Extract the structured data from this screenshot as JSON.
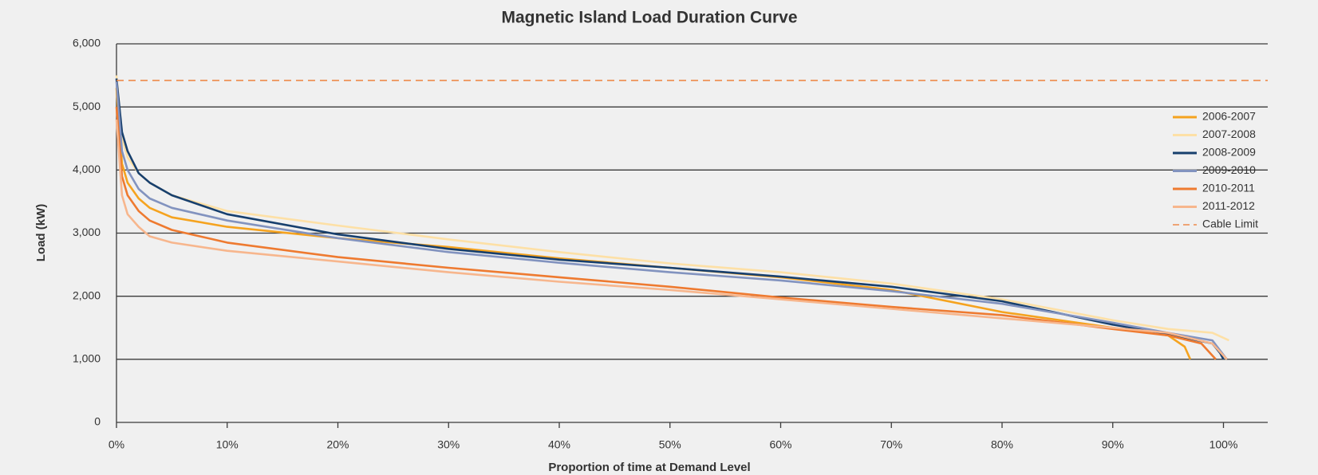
{
  "chart_data": {
    "type": "line",
    "title": "Magnetic Island Load Duration Curve",
    "xlabel": "Proportion of time at Demand Level",
    "ylabel": "Load (kW)",
    "xlim": [
      0,
      104
    ],
    "ylim": [
      0,
      6000
    ],
    "xticks": [
      {
        "value": 0,
        "label": "0%"
      },
      {
        "value": 10,
        "label": "10%"
      },
      {
        "value": 20,
        "label": "20%"
      },
      {
        "value": 30,
        "label": "30%"
      },
      {
        "value": 40,
        "label": "40%"
      },
      {
        "value": 50,
        "label": "50%"
      },
      {
        "value": 60,
        "label": "60%"
      },
      {
        "value": 70,
        "label": "70%"
      },
      {
        "value": 80,
        "label": "80%"
      },
      {
        "value": 90,
        "label": "90%"
      },
      {
        "value": 100,
        "label": "100%"
      }
    ],
    "yticks": [
      0,
      {
        "value": 1000,
        "label": "1,000"
      },
      {
        "value": 2000,
        "label": "2,000"
      },
      {
        "value": 3000,
        "label": "3,000"
      },
      {
        "value": 4000,
        "label": "4,000"
      },
      {
        "value": 5000,
        "label": "5,000"
      },
      {
        "value": 6000,
        "label": "6,000"
      }
    ],
    "grid": true,
    "legend": "right",
    "series": [
      {
        "name": "2006-2007",
        "color": "#f5a31f",
        "x": [
          0,
          0.5,
          1,
          2,
          3,
          5,
          10,
          20,
          30,
          40,
          50,
          60,
          70,
          80,
          90,
          95,
          96.5,
          97
        ],
        "values": [
          5300,
          4100,
          3800,
          3550,
          3400,
          3250,
          3100,
          2920,
          2780,
          2600,
          2450,
          2300,
          2100,
          1750,
          1500,
          1380,
          1200,
          1000
        ]
      },
      {
        "name": "2007-2008",
        "color": "#fde0a6",
        "x": [
          0,
          0.5,
          1,
          2,
          3,
          5,
          10,
          20,
          30,
          40,
          50,
          60,
          70,
          80,
          90,
          95,
          99,
          100.5
        ],
        "values": [
          5500,
          4500,
          4200,
          3950,
          3800,
          3600,
          3350,
          3120,
          2900,
          2700,
          2520,
          2380,
          2200,
          1950,
          1620,
          1480,
          1420,
          1300
        ]
      },
      {
        "name": "2008-2009",
        "color": "#173f6d",
        "x": [
          0,
          0.5,
          1,
          2,
          3,
          5,
          10,
          20,
          30,
          40,
          50,
          60,
          70,
          80,
          90,
          95,
          99,
          99.7,
          100
        ],
        "values": [
          5450,
          4600,
          4300,
          3950,
          3800,
          3600,
          3300,
          2980,
          2750,
          2580,
          2450,
          2310,
          2150,
          1920,
          1550,
          1400,
          1250,
          1100,
          1000
        ]
      },
      {
        "name": "2009-2010",
        "color": "#8293bf",
        "x": [
          0,
          0.5,
          1,
          2,
          3,
          5,
          10,
          20,
          30,
          40,
          50,
          60,
          70,
          80,
          90,
          95,
          99,
          100.3
        ],
        "values": [
          5400,
          4300,
          4000,
          3700,
          3550,
          3400,
          3200,
          2920,
          2700,
          2530,
          2380,
          2250,
          2080,
          1880,
          1580,
          1420,
          1300,
          1000
        ]
      },
      {
        "name": "2010-2011",
        "color": "#ee7a30",
        "x": [
          0,
          0.5,
          1,
          2,
          3,
          5,
          10,
          20,
          30,
          40,
          50,
          60,
          70,
          80,
          90,
          95,
          98,
          99.3
        ],
        "values": [
          5000,
          3900,
          3600,
          3350,
          3200,
          3050,
          2850,
          2620,
          2450,
          2300,
          2150,
          1980,
          1830,
          1700,
          1480,
          1380,
          1250,
          1000
        ]
      },
      {
        "name": "2011-2012",
        "color": "#f7b68d",
        "x": [
          0,
          0.5,
          1,
          2,
          3,
          5,
          10,
          20,
          30,
          40,
          50,
          60,
          70,
          80,
          90,
          95,
          99,
          100.3
        ],
        "values": [
          4800,
          3600,
          3300,
          3100,
          2950,
          2850,
          2720,
          2550,
          2380,
          2230,
          2100,
          1950,
          1800,
          1650,
          1500,
          1420,
          1250,
          1000
        ]
      },
      {
        "name": "Cable Limit",
        "color": "#ee8a4a",
        "dashed": true,
        "x": [
          0,
          104
        ],
        "values": [
          5420,
          5420
        ]
      }
    ]
  }
}
